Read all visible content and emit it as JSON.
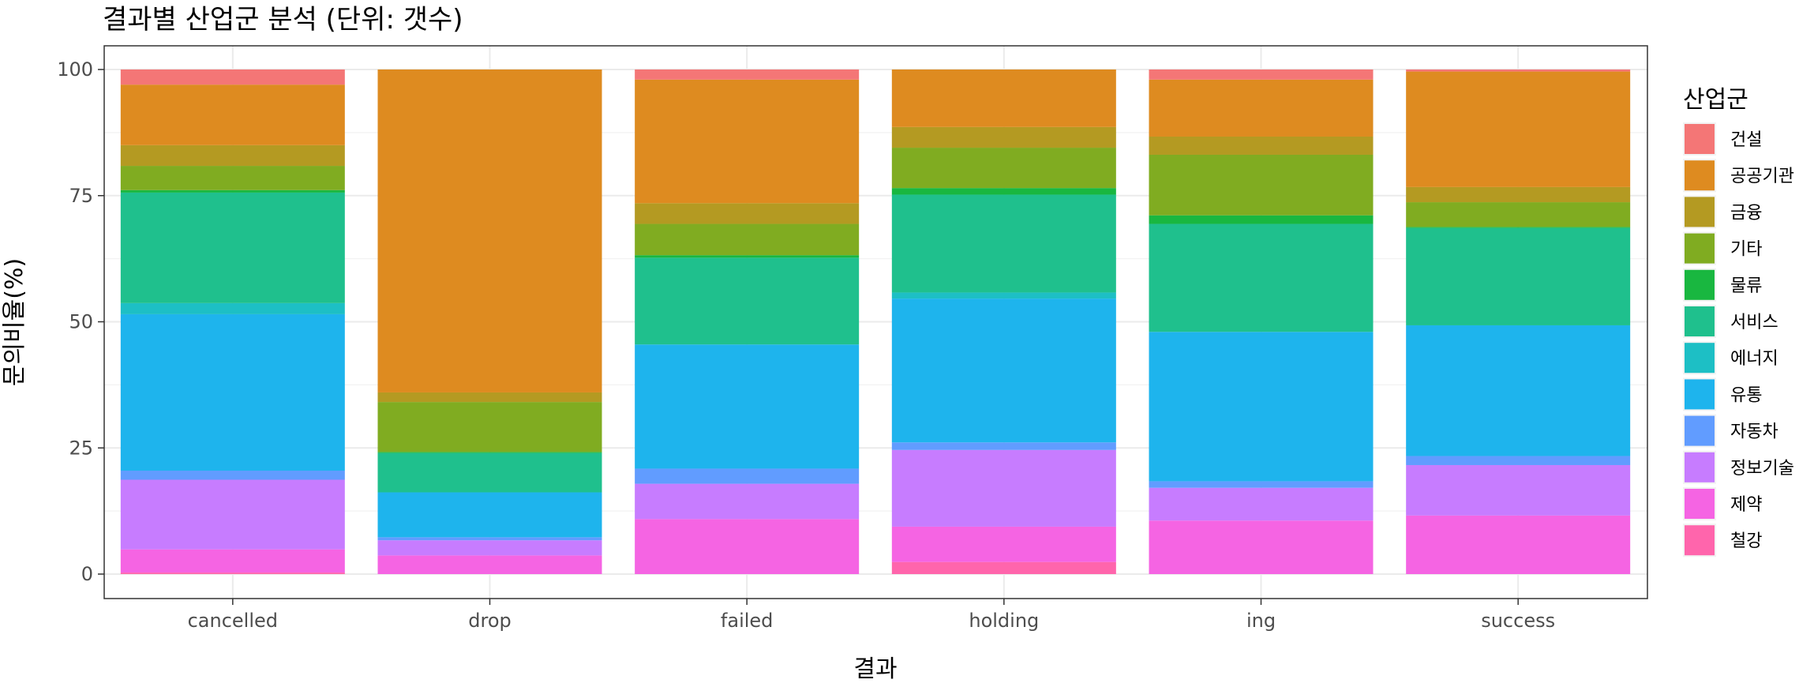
{
  "chart_data": {
    "type": "bar",
    "stacked": true,
    "title": "결과별 산업군 분석 (단위: 갯수)",
    "xlabel": "결과",
    "ylabel": "문의비율(%)",
    "ylim": [
      0,
      100
    ],
    "yticks": [
      "0",
      "25",
      "50",
      "75",
      "100"
    ],
    "grid": true,
    "legend_position": "right",
    "legend_title": "산업군",
    "categories": [
      "cancelled",
      "drop",
      "failed",
      "holding",
      "ing",
      "success"
    ],
    "series": [
      {
        "name": "철강",
        "color": "#FF65AC",
        "values": [
          0.3,
          0,
          0,
          2.4,
          0,
          0
        ]
      },
      {
        "name": "제약",
        "color": "#F564E3",
        "values": [
          4.6,
          3.7,
          10.9,
          7.0,
          10.6,
          11.6
        ]
      },
      {
        "name": "정보기술",
        "color": "#C77CFF",
        "values": [
          13.8,
          3.0,
          7.0,
          15.2,
          6.5,
          10.0
        ]
      },
      {
        "name": "자동차",
        "color": "#619CFF",
        "values": [
          1.8,
          0.6,
          3.0,
          1.5,
          1.3,
          1.8
        ]
      },
      {
        "name": "유통",
        "color": "#1EB4ED",
        "values": [
          31.0,
          8.9,
          24.6,
          28.5,
          29.6,
          25.9
        ]
      },
      {
        "name": "에너지",
        "color": "#1DBFC5",
        "values": [
          2.2,
          0,
          0,
          1.2,
          0,
          0
        ]
      },
      {
        "name": "서비스",
        "color": "#1FC08D",
        "values": [
          21.9,
          7.8,
          17.2,
          19.4,
          21.4,
          19.3
        ]
      },
      {
        "name": "물류",
        "color": "#19B740",
        "values": [
          0.5,
          0.2,
          0.5,
          1.3,
          1.7,
          0.2
        ]
      },
      {
        "name": "기타",
        "color": "#80AC21",
        "values": [
          4.8,
          9.9,
          6.2,
          8.0,
          12.0,
          4.9
        ]
      },
      {
        "name": "금융",
        "color": "#B49A22",
        "values": [
          4.1,
          1.9,
          4.1,
          4.1,
          3.6,
          3.0
        ]
      },
      {
        "name": "공공기관",
        "color": "#DE8B20",
        "values": [
          12.0,
          64.0,
          24.5,
          11.4,
          11.3,
          22.9
        ]
      },
      {
        "name": "건설",
        "color": "#F47676",
        "values": [
          3.0,
          0,
          2.0,
          0,
          2.0,
          0.4
        ]
      }
    ],
    "legend_order": [
      "건설",
      "공공기관",
      "금융",
      "기타",
      "물류",
      "서비스",
      "에너지",
      "유통",
      "자동차",
      "정보기술",
      "제약",
      "철강"
    ]
  }
}
